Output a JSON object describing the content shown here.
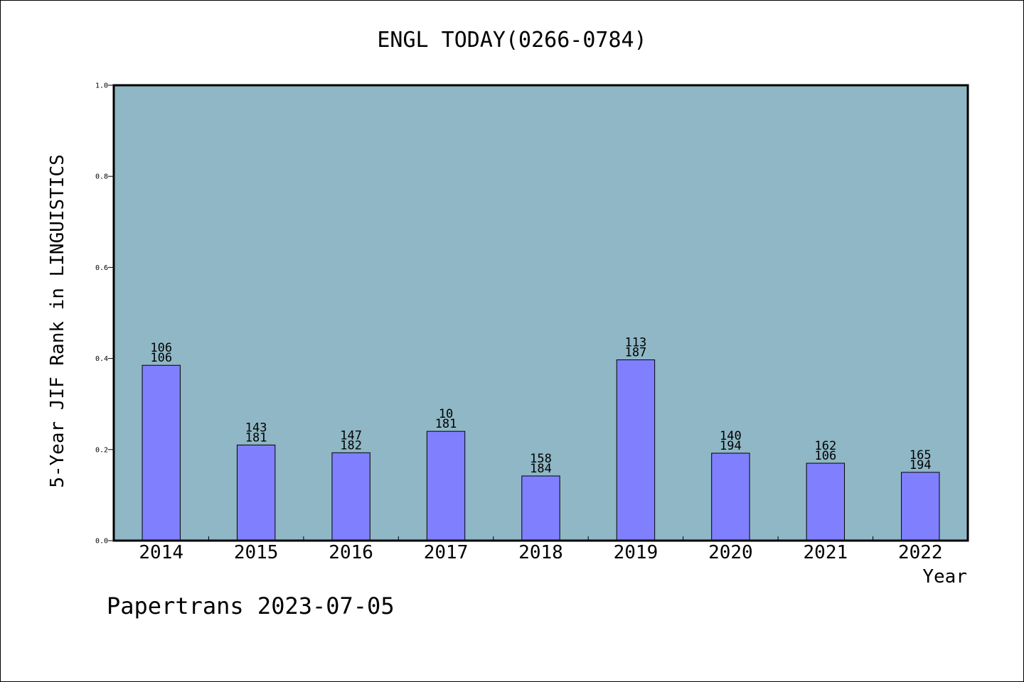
{
  "chart_data": {
    "type": "bar",
    "title": "ENGL TODAY(0266-0784)",
    "ylabel": "5-Year JIF Rank in LINGUISTICS",
    "xlabel": "Year",
    "categories": [
      "2014",
      "2015",
      "2016",
      "2017",
      "2018",
      "2019",
      "2020",
      "2021",
      "2022"
    ],
    "values": [
      0.385,
      0.21,
      0.193,
      0.24,
      0.142,
      0.397,
      0.192,
      0.17,
      0.15
    ],
    "labels_top": [
      "106",
      "143",
      "147",
      "10",
      "158",
      "113",
      "140",
      "162",
      "165"
    ],
    "labels_bottom": [
      "106",
      "181",
      "182",
      "181",
      "184",
      "187",
      "194",
      "106",
      "194"
    ],
    "ylim": [
      0,
      1.0
    ],
    "yticks": [
      "0.0",
      "0.2",
      "0.4",
      "0.6",
      "0.8",
      "1.0"
    ],
    "grid": false,
    "colors": {
      "plot_background": "#8fb7c5",
      "bar": "#8080ff",
      "frame": "#000000"
    }
  },
  "footer": {
    "text": "Papertrans 2023-07-05"
  }
}
